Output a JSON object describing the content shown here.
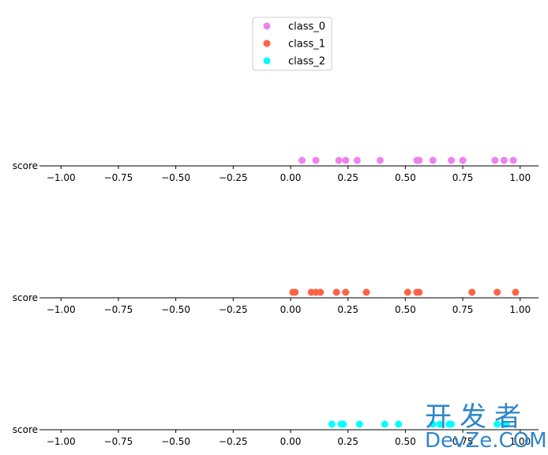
{
  "chart_data": {
    "type": "scatter",
    "panels": 3,
    "xlim": [
      -1.08,
      1.08
    ],
    "x_ticks": [
      -1.0,
      -0.75,
      -0.5,
      -0.25,
      0.0,
      0.25,
      0.5,
      0.75,
      1.0
    ],
    "x_tick_labels": [
      "−1.00",
      "−0.75",
      "−0.50",
      "−0.25",
      "0.00",
      "0.25",
      "0.50",
      "0.75",
      "1.00"
    ],
    "y_tick_label": "score",
    "grid": false,
    "legend_placement": "top-center",
    "series": [
      {
        "name": "class_0",
        "color": "#ee82ee",
        "x": [
          0.05,
          0.11,
          0.21,
          0.24,
          0.29,
          0.39,
          0.55,
          0.56,
          0.62,
          0.7,
          0.75,
          0.89,
          0.93,
          0.97
        ]
      },
      {
        "name": "class_1",
        "color": "#ff6347",
        "x": [
          0.01,
          0.02,
          0.09,
          0.11,
          0.13,
          0.2,
          0.24,
          0.33,
          0.51,
          0.55,
          0.56,
          0.79,
          0.9,
          0.98
        ]
      },
      {
        "name": "class_2",
        "color": "#00ffff",
        "x": [
          0.18,
          0.22,
          0.23,
          0.3,
          0.41,
          0.47,
          0.62,
          0.65,
          0.69,
          0.7,
          0.9,
          0.93,
          0.94
        ]
      }
    ]
  },
  "watermark": {
    "cn": "开发者",
    "en": "DevZe.COM"
  }
}
